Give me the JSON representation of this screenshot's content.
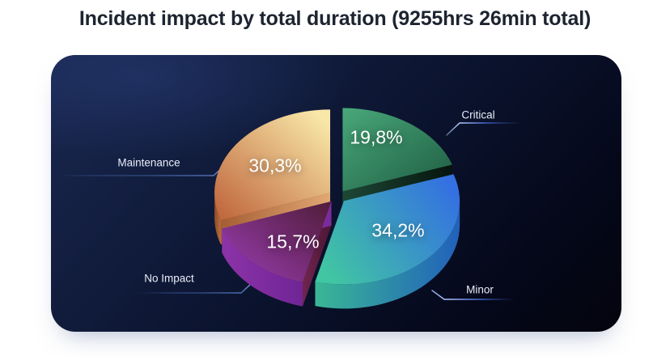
{
  "chart_data": {
    "type": "pie",
    "style": "3d-exploded-pie",
    "title": "Incident impact by total duration (9255hrs 26min total)",
    "total": "9255hrs 26min",
    "legend_position": "callout-labels",
    "background_color": "#0B142F",
    "decimal_separator": ",",
    "slices": [
      {
        "label": "Critical",
        "value_pct": 19.8,
        "pct_label": "19,8%",
        "colors": {
          "top": [
            "#49a87a",
            "#1e5c42"
          ],
          "top_dir": [
            0,
            0,
            1,
            1
          ],
          "wall": [
            "#1c4a36",
            "#0a2015"
          ],
          "dark": "#0d2419",
          "cut": [
            "#123126",
            [
              "#1d4836",
              "#06140e"
            ]
          ]
        }
      },
      {
        "label": "Minor",
        "value_pct": 34.2,
        "pct_label": "34,2%",
        "colors": {
          "top": [
            "#41c5a3",
            "#3470e2"
          ],
          "top_dir": [
            0,
            0.75,
            1,
            0.2
          ],
          "wall": [
            "#3ab795",
            "#2161bb"
          ],
          "dark": "#14443c",
          "cut": [
            "#2a7f9e",
            "#35ab8f"
          ]
        }
      },
      {
        "label": "No Impact",
        "value_pct": 15.7,
        "pct_label": "15,7%",
        "colors": {
          "top": [
            "#9c3eb5",
            "#531e3e"
          ],
          "top_dir": [
            0,
            1,
            1,
            0.1
          ],
          "wall": [
            "#8c33a8",
            "#6f2595"
          ],
          "dark": "#42104f",
          "cut": [
            [
              "#71254f",
              "#4b1734"
            ],
            "#7c2b9b"
          ]
        }
      },
      {
        "label": "Maintenance",
        "value_pct": 30.3,
        "pct_label": "30,3%",
        "colors": {
          "top": [
            "#c1693f",
            "#f8e7a8"
          ],
          "top_dir": [
            0,
            0.9,
            0.85,
            0
          ],
          "wall": [
            "#8a4a27",
            "#b86f41"
          ],
          "dark": "#5e2f15",
          "cut": [
            [
              "#a55d33",
              "#e2a873"
            ],
            "#a0582f"
          ]
        }
      }
    ]
  }
}
